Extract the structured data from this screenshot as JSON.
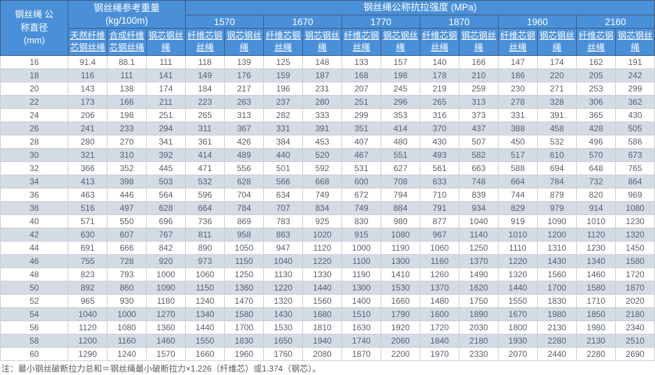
{
  "colors": {
    "header_bg": "#4a90d9",
    "header_text": "#ffffff",
    "stripe_bg": "#d5dbe5",
    "body_text": "#595f6b",
    "header_border": "#3f5a7d",
    "body_border": "#c9cdd4"
  },
  "table": {
    "diameter_header": "钢丝绳 公\n称直径\n(mm)",
    "weight_group_header": "钢丝绳参考重量\n(kg/100m)",
    "strength_group_header": "钢丝绳公称抗拉强度 (MPa)",
    "weight_sub_headers": [
      "天然纤维芯钢丝绳",
      "合成纤维芯钢丝绳",
      "钢芯钢丝绳"
    ],
    "strength_grades": [
      "1570",
      "1670",
      "1770",
      "1870",
      "1960",
      "2160"
    ],
    "strength_sub_headers": [
      "纤维芯钢丝绳",
      "钢芯钢丝绳"
    ]
  },
  "note": "注：最小钢丝破断拉力总和＝钢丝绳最小破断拉力×1.226（纤维芯）或1.374（钢芯）。",
  "chart_data": {
    "type": "table",
    "title": "钢丝绳公称抗拉强度 (MPa)",
    "columns": [
      "钢丝绳公称直径(mm)",
      "参考重量-天然纤维芯钢丝绳(kg/100m)",
      "参考重量-合成纤维芯钢丝绳(kg/100m)",
      "参考重量-钢芯钢丝绳(kg/100m)",
      "1570-纤维芯钢丝绳",
      "1570-钢芯钢丝绳",
      "1670-纤维芯钢丝绳",
      "1670-钢芯钢丝绳",
      "1770-纤维芯钢丝绳",
      "1770-钢芯钢丝绳",
      "1870-纤维芯钢丝绳",
      "1870-钢芯钢丝绳",
      "1960-纤维芯钢丝绳",
      "1960-钢芯钢丝绳",
      "2160-纤维芯钢丝绳",
      "2160-钢芯钢丝绳"
    ],
    "rows": [
      [
        16,
        91.4,
        88.1,
        111,
        118,
        139,
        125,
        148,
        133,
        157,
        140,
        166,
        147,
        174,
        162,
        191
      ],
      [
        18,
        116,
        111,
        141,
        149,
        176,
        159,
        187,
        168,
        198,
        178,
        210,
        186,
        220,
        205,
        242
      ],
      [
        20,
        143,
        138,
        174,
        184,
        217,
        196,
        231,
        207,
        245,
        219,
        259,
        230,
        271,
        253,
        299
      ],
      [
        22,
        173,
        166,
        211,
        223,
        263,
        237,
        280,
        251,
        296,
        265,
        313,
        278,
        328,
        306,
        362
      ],
      [
        24,
        206,
        198,
        251,
        265,
        313,
        282,
        333,
        299,
        353,
        316,
        373,
        331,
        391,
        365,
        430
      ],
      [
        26,
        241,
        233,
        294,
        311,
        367,
        331,
        391,
        351,
        414,
        370,
        437,
        388,
        458,
        428,
        505
      ],
      [
        28,
        280,
        270,
        341,
        361,
        426,
        384,
        453,
        407,
        480,
        430,
        507,
        450,
        532,
        496,
        586
      ],
      [
        30,
        321,
        310,
        392,
        414,
        489,
        440,
        520,
        467,
        551,
        493,
        582,
        517,
        610,
        570,
        673
      ],
      [
        32,
        366,
        352,
        445,
        471,
        556,
        501,
        592,
        531,
        627,
        561,
        663,
        588,
        694,
        648,
        765
      ],
      [
        34,
        413,
        398,
        503,
        532,
        628,
        566,
        668,
        600,
        708,
        633,
        748,
        664,
        784,
        732,
        864
      ],
      [
        36,
        463,
        446,
        564,
        596,
        704,
        634,
        749,
        672,
        794,
        710,
        839,
        744,
        879,
        820,
        969
      ],
      [
        38,
        516,
        497,
        628,
        664,
        784,
        707,
        834,
        749,
        884,
        791,
        934,
        829,
        979,
        914,
        1080
      ],
      [
        40,
        571,
        550,
        696,
        736,
        869,
        783,
        925,
        830,
        980,
        877,
        1040,
        919,
        1090,
        1010,
        1230
      ],
      [
        42,
        630,
        607,
        767,
        811,
        958,
        863,
        1020,
        915,
        1080,
        967,
        1140,
        1010,
        1200,
        1120,
        1320
      ],
      [
        44,
        691,
        666,
        842,
        890,
        1050,
        947,
        1120,
        1000,
        1190,
        1060,
        1250,
        1110,
        1310,
        1230,
        1450
      ],
      [
        46,
        755,
        728,
        920,
        973,
        1150,
        1040,
        1220,
        1100,
        1300,
        1160,
        1370,
        1220,
        1430,
        1340,
        1580
      ],
      [
        48,
        823,
        793,
        1000,
        1060,
        1250,
        1130,
        1330,
        1190,
        1410,
        1260,
        1490,
        1320,
        1560,
        1460,
        1720
      ],
      [
        50,
        892,
        860,
        1090,
        1150,
        1360,
        1220,
        1440,
        1300,
        1530,
        1370,
        1620,
        1440,
        1700,
        1580,
        1870
      ],
      [
        52,
        965,
        930,
        1180,
        1240,
        1470,
        1320,
        1560,
        1400,
        1660,
        1480,
        1750,
        1550,
        1830,
        1710,
        2020
      ],
      [
        54,
        1040,
        1000,
        1270,
        1340,
        1580,
        1430,
        1680,
        1510,
        1790,
        1600,
        1890,
        1670,
        1980,
        1850,
        2180
      ],
      [
        56,
        1120,
        1080,
        1360,
        1440,
        1700,
        1530,
        1810,
        1630,
        1920,
        1720,
        2030,
        1800,
        2130,
        1980,
        2340
      ],
      [
        58,
        1200,
        1160,
        1460,
        1550,
        1830,
        1650,
        1940,
        1740,
        2060,
        1840,
        2180,
        1930,
        2280,
        2130,
        2510
      ],
      [
        60,
        1290,
        1240,
        1570,
        1660,
        1960,
        1760,
        2080,
        1870,
        2200,
        1970,
        2330,
        2070,
        2440,
        2280,
        2690
      ]
    ]
  }
}
